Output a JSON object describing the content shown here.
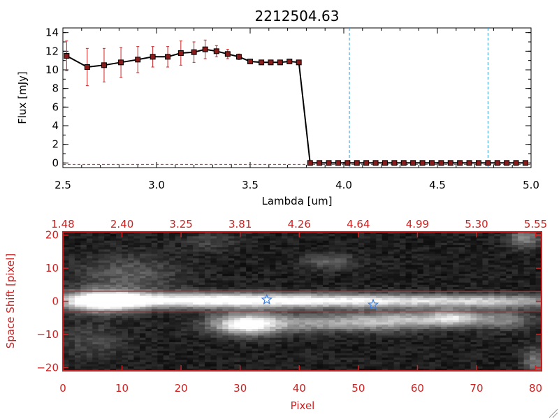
{
  "colors": {
    "axis_top": "#000000",
    "axis_bottom": "#cc2222",
    "marker": "#8b1a1a",
    "errorbar": "#cc2222",
    "line": "#000000",
    "dashed_vline": "#2e9bd6",
    "star": "#3b7ddd",
    "band": "#cc2222"
  },
  "chart_data": [
    {
      "type": "line",
      "title": "2212504.63",
      "xlabel": "Lambda [um]",
      "ylabel": "Flux [mJy]",
      "xlim": [
        2.5,
        5.0
      ],
      "ylim": [
        -0.5,
        14.5
      ],
      "xticks": [
        {
          "v": 2.5,
          "label": "2.5"
        },
        {
          "v": 3.0,
          "label": "3.0"
        },
        {
          "v": 3.5,
          "label": "3.5"
        },
        {
          "v": 4.0,
          "label": "4.0"
        },
        {
          "v": 4.5,
          "label": "4.5"
        },
        {
          "v": 5.0,
          "label": "5.0"
        }
      ],
      "yticks": [
        {
          "v": 0,
          "label": "0"
        },
        {
          "v": 2,
          "label": "2"
        },
        {
          "v": 4,
          "label": "4"
        },
        {
          "v": 6,
          "label": "6"
        },
        {
          "v": 8,
          "label": "8"
        },
        {
          "v": 10,
          "label": "10"
        },
        {
          "v": 12,
          "label": "12"
        },
        {
          "v": 14,
          "label": "14"
        }
      ],
      "vlines": [
        4.03,
        4.77
      ],
      "series": [
        {
          "x": [
            2.52,
            2.63,
            2.72,
            2.81,
            2.9,
            2.98,
            3.06,
            3.13,
            3.2,
            3.26,
            3.32,
            3.38,
            3.44,
            3.5,
            3.56,
            3.61,
            3.66,
            3.71,
            3.76,
            3.82,
            3.87,
            3.92,
            3.97,
            4.02,
            4.07,
            4.12,
            4.17,
            4.22,
            4.27,
            4.32,
            4.37,
            4.42,
            4.47,
            4.52,
            4.57,
            4.62,
            4.67,
            4.72,
            4.77,
            4.82,
            4.87,
            4.92,
            4.97
          ],
          "y": [
            11.5,
            10.3,
            10.5,
            10.8,
            11.1,
            11.4,
            11.4,
            11.8,
            11.9,
            12.2,
            12.0,
            11.7,
            11.4,
            10.9,
            10.8,
            10.8,
            10.8,
            10.9,
            10.8,
            0.0,
            0.0,
            0.0,
            0.0,
            0.0,
            0.0,
            0.0,
            0.0,
            0.0,
            0.0,
            0.0,
            0.0,
            0.0,
            0.0,
            0.0,
            0.0,
            0.0,
            0.0,
            0.0,
            0.0,
            0.0,
            0.0,
            0.0,
            0.0
          ],
          "err": [
            1.6,
            2.0,
            1.8,
            1.6,
            1.4,
            1.1,
            1.1,
            1.3,
            1.1,
            1.0,
            0.6,
            0.5,
            0.3,
            0.2,
            0.2,
            0.2,
            0.2,
            0.2,
            0.2,
            0,
            0,
            0,
            0,
            0,
            0,
            0,
            0,
            0,
            0,
            0,
            0,
            0,
            0,
            0,
            0,
            0,
            0,
            0,
            0,
            0,
            0,
            0,
            0
          ]
        }
      ]
    },
    {
      "type": "heatmap",
      "xlabel": "Pixel",
      "ylabel": "Space Shift [pixel]",
      "xlim": [
        0,
        81
      ],
      "ylim": [
        -21,
        21
      ],
      "xticks": [
        {
          "v": 0,
          "label": "0"
        },
        {
          "v": 10,
          "label": "10"
        },
        {
          "v": 20,
          "label": "20"
        },
        {
          "v": 30,
          "label": "30"
        },
        {
          "v": 40,
          "label": "40"
        },
        {
          "v": 50,
          "label": "50"
        },
        {
          "v": 60,
          "label": "60"
        },
        {
          "v": 70,
          "label": "70"
        },
        {
          "v": 80,
          "label": "80"
        }
      ],
      "top_xticks": [
        {
          "v": 0,
          "label": "1.48"
        },
        {
          "v": 10,
          "label": "2.40"
        },
        {
          "v": 20,
          "label": "3.25"
        },
        {
          "v": 30,
          "label": "3.81"
        },
        {
          "v": 40,
          "label": "4.26"
        },
        {
          "v": 50,
          "label": "4.64"
        },
        {
          "v": 60,
          "label": "4.99"
        },
        {
          "v": 70,
          "label": "5.30"
        },
        {
          "v": 80,
          "label": "5.55"
        }
      ],
      "yticks": [
        {
          "v": -20,
          "label": "−20"
        },
        {
          "v": -10,
          "label": "−10"
        },
        {
          "v": 0,
          "label": "0"
        },
        {
          "v": 10,
          "label": "10"
        },
        {
          "v": 20,
          "label": "20"
        }
      ],
      "hlines": [
        3,
        -3
      ],
      "stars": [
        {
          "x": 34.5,
          "y": 0.5
        },
        {
          "x": 52.5,
          "y": -1
        }
      ]
    }
  ]
}
